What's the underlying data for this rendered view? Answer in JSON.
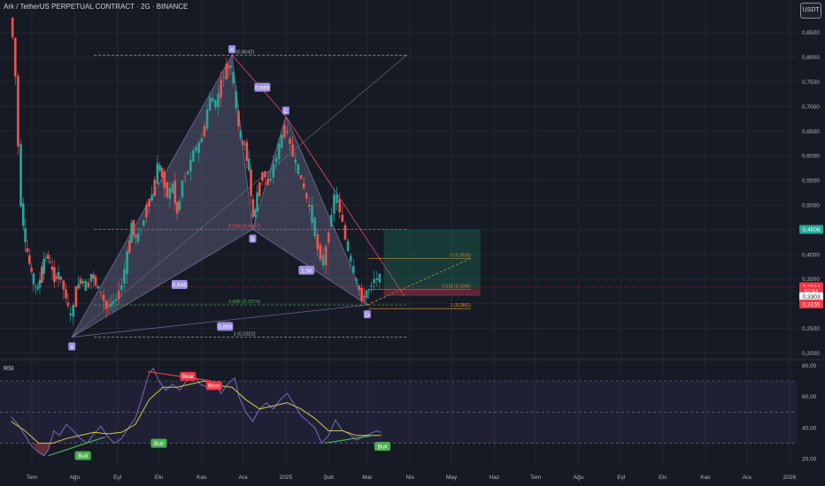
{
  "header": {
    "title": "Ark / TetherUS PERPETUAL CONTRACT · 2G · BINANCE",
    "currency": "USDT"
  },
  "colors": {
    "bg": "#161a25",
    "up": "#26a69a",
    "down": "#ef5350",
    "pattern": "#b8b3e9",
    "label": "#9c8fe0",
    "rsi": "#7e74c9",
    "rsi_ma": "#d6c94a",
    "green": "#4caf50",
    "red": "#f23645"
  },
  "chart_data": [
    {
      "type": "candlestick",
      "price_ticks": [
        "0,8500",
        "0,8000",
        "0,7500",
        "0,7000",
        "0,6500",
        "0,6000",
        "0,5500",
        "0,5000",
        "0,4500",
        "0,4000",
        "0,3500",
        "0,3000",
        "0,2500",
        "0,2000"
      ],
      "price_tick_values": [
        0.85,
        0.8,
        0.75,
        0.7,
        0.65,
        0.6,
        0.55,
        0.5,
        0.45,
        0.4,
        0.35,
        0.3,
        0.25,
        0.2
      ],
      "ylim": [
        0.19,
        0.88
      ],
      "x_ticks": [
        "Tem",
        "Ağu",
        "Eyl",
        "Eki",
        "Kas",
        "Ara",
        "2025",
        "Şub",
        "Mar",
        "Nis",
        "May",
        "Haz",
        "Tem",
        "Ağu",
        "Eyl",
        "Eki",
        "Kas",
        "Ara",
        "2026"
      ],
      "x_tick_days": [
        0,
        31,
        62,
        92,
        123,
        153,
        184,
        215,
        243,
        274,
        304,
        335,
        365,
        396,
        427,
        457,
        488,
        518,
        549
      ],
      "series": [
        {
          "name": "early",
          "points": [
            [
              -15,
              0.88
            ],
            [
              -13,
              0.84
            ],
            [
              -11,
              0.76
            ],
            [
              -9,
              0.62
            ],
            [
              -7,
              0.5
            ],
            [
              -4,
              0.42
            ],
            [
              -1,
              0.38
            ],
            [
              2,
              0.34
            ],
            [
              5,
              0.33
            ],
            [
              8,
              0.37
            ],
            [
              11,
              0.4
            ],
            [
              14,
              0.38
            ],
            [
              17,
              0.35
            ],
            [
              20,
              0.36
            ],
            [
              24,
              0.33
            ],
            [
              27,
              0.29
            ],
            [
              29,
              0.27
            ]
          ]
        },
        {
          "name": "xa",
          "points": [
            [
              29,
              0.27
            ],
            [
              33,
              0.33
            ],
            [
              36,
              0.35
            ],
            [
              40,
              0.33
            ],
            [
              44,
              0.36
            ],
            [
              47,
              0.34
            ],
            [
              51,
              0.32
            ],
            [
              55,
              0.29
            ],
            [
              58,
              0.3
            ],
            [
              62,
              0.31
            ],
            [
              66,
              0.34
            ],
            [
              70,
              0.4
            ],
            [
              73,
              0.46
            ],
            [
              76,
              0.43
            ],
            [
              80,
              0.45
            ],
            [
              84,
              0.5
            ],
            [
              88,
              0.52
            ],
            [
              92,
              0.58
            ],
            [
              95,
              0.56
            ],
            [
              99,
              0.52
            ],
            [
              103,
              0.54
            ],
            [
              106,
              0.48
            ],
            [
              110,
              0.55
            ],
            [
              114,
              0.57
            ],
            [
              118,
              0.61
            ],
            [
              122,
              0.62
            ],
            [
              126,
              0.66
            ],
            [
              130,
              0.72
            ],
            [
              134,
              0.7
            ],
            [
              138,
              0.75
            ],
            [
              142,
              0.78
            ],
            [
              145,
              0.78
            ]
          ]
        },
        {
          "name": "ab",
          "points": [
            [
              145,
              0.78
            ],
            [
              147,
              0.74
            ],
            [
              149,
              0.69
            ],
            [
              152,
              0.63
            ],
            [
              155,
              0.62
            ],
            [
              158,
              0.57
            ],
            [
              161,
              0.47
            ]
          ]
        },
        {
          "name": "bc",
          "points": [
            [
              161,
              0.47
            ],
            [
              164,
              0.52
            ],
            [
              168,
              0.57
            ],
            [
              172,
              0.54
            ],
            [
              176,
              0.58
            ],
            [
              180,
              0.62
            ],
            [
              184,
              0.66
            ]
          ]
        },
        {
          "name": "cd",
          "points": [
            [
              184,
              0.66
            ],
            [
              188,
              0.62
            ],
            [
              192,
              0.58
            ],
            [
              196,
              0.55
            ],
            [
              200,
              0.51
            ],
            [
              204,
              0.47
            ],
            [
              208,
              0.41
            ],
            [
              212,
              0.38
            ],
            [
              216,
              0.45
            ],
            [
              220,
              0.52
            ],
            [
              224,
              0.49
            ],
            [
              228,
              0.43
            ],
            [
              232,
              0.38
            ],
            [
              236,
              0.34
            ],
            [
              240,
              0.31
            ],
            [
              245,
              0.33
            ],
            [
              249,
              0.35
            ],
            [
              253,
              0.35
            ]
          ]
        }
      ],
      "pattern": {
        "points": [
          {
            "label": "X",
            "day": 29,
            "price": 0.2322
          },
          {
            "label": "A",
            "day": 145,
            "price": 0.8042
          },
          {
            "label": "B",
            "day": 160,
            "price": 0.4507
          },
          {
            "label": "C",
            "day": 184,
            "price": 0.68
          },
          {
            "label": "D",
            "day": 243,
            "price": 0.2974
          }
        ],
        "ratios": [
          {
            "text": "0,645",
            "day": 107,
            "price": 0.337
          },
          {
            "text": "0,669",
            "day": 167,
            "price": 0.737
          },
          {
            "text": "1,56",
            "day": 199,
            "price": 0.366
          },
          {
            "text": "0,899",
            "day": 140,
            "price": 0.252
          }
        ],
        "levels": [
          {
            "text": "0 (0,8042)",
            "day0": 45,
            "day1": 272,
            "price": 0.8042,
            "label_day": 153,
            "color": "#b2b5be"
          },
          {
            "text": "0,618 (0,4507)",
            "day0": 45,
            "day1": 272,
            "price": 0.4507,
            "label_day": 154,
            "color": "#ef5350"
          },
          {
            "text": "0,886 (0,2974)",
            "day0": 45,
            "day1": 272,
            "price": 0.2974,
            "label_day": 154,
            "color": "#4caf50"
          },
          {
            "text": "1 (0,2322)",
            "day0": 45,
            "day1": 272,
            "price": 0.2322,
            "label_day": 154,
            "color": "#b2b5be"
          }
        ],
        "target_levels": [
          {
            "text": "0 (0,3916)",
            "day0": 244,
            "day1": 318,
            "price": 0.3916,
            "color": "#f0a030"
          },
          {
            "text": "0,618 (0,3289)",
            "day0": 244,
            "day1": 318,
            "price": 0.3289,
            "color": "#f0a030"
          },
          {
            "text": "1 (0,2901)",
            "day0": 244,
            "day1": 318,
            "price": 0.2901,
            "color": "#f0a030"
          }
        ],
        "position": {
          "day0": 255,
          "day1": 325,
          "entry": 0.3303,
          "target": 0.4506,
          "stop": 0.3155
        }
      },
      "price_labels": [
        {
          "text": "0,4506",
          "price": 0.4506,
          "bg": "#26a69a",
          "fg": "#ffffff"
        },
        {
          "text": "0,3344",
          "price": 0.3344,
          "bg": "#f23645",
          "fg": "#ffffff"
        },
        {
          "text": "37:51",
          "price": 0.3253,
          "bg": "#f23645",
          "fg": "#ffffff"
        },
        {
          "text": "0,3303",
          "price": 0.3303,
          "bg": "#ffffff",
          "fg": "#131722",
          "offset": 1
        },
        {
          "text": "0,3155",
          "price": 0.3155,
          "bg": "#f23645",
          "fg": "#ffffff",
          "offset": 1
        }
      ]
    },
    {
      "type": "line",
      "title": "RSI",
      "y_ticks": [
        "80,00",
        "60,00",
        "40,00",
        "20,00"
      ],
      "y_tick_values": [
        80,
        60,
        40,
        20
      ],
      "ylim": [
        15,
        82
      ],
      "bands": [
        70,
        50,
        30
      ],
      "series": [
        {
          "name": "RSI",
          "points": [
            [
              -15,
              47
            ],
            [
              -10,
              42
            ],
            [
              -5,
              35
            ],
            [
              0,
              28
            ],
            [
              5,
              24
            ],
            [
              9,
              22
            ],
            [
              12,
              26
            ],
            [
              16,
              38
            ],
            [
              20,
              35
            ],
            [
              25,
              42
            ],
            [
              30,
              38
            ],
            [
              35,
              33
            ],
            [
              40,
              30
            ],
            [
              45,
              36
            ],
            [
              50,
              41
            ],
            [
              55,
              34
            ],
            [
              60,
              30
            ],
            [
              65,
              33
            ],
            [
              70,
              40
            ],
            [
              75,
              46
            ],
            [
              80,
              60
            ],
            [
              85,
              75
            ],
            [
              88,
              78
            ],
            [
              92,
              70
            ],
            [
              97,
              64
            ],
            [
              102,
              68
            ],
            [
              107,
              64
            ],
            [
              112,
              70
            ],
            [
              117,
              74
            ],
            [
              122,
              68
            ],
            [
              127,
              66
            ],
            [
              132,
              70
            ],
            [
              137,
              62
            ],
            [
              142,
              68
            ],
            [
              147,
              72
            ],
            [
              150,
              60
            ],
            [
              155,
              50
            ],
            [
              160,
              44
            ],
            [
              165,
              52
            ],
            [
              170,
              56
            ],
            [
              175,
              52
            ],
            [
              180,
              58
            ],
            [
              185,
              62
            ],
            [
              190,
              55
            ],
            [
              195,
              48
            ],
            [
              200,
              44
            ],
            [
              205,
              40
            ],
            [
              210,
              30
            ],
            [
              215,
              35
            ],
            [
              220,
              45
            ],
            [
              225,
              38
            ],
            [
              230,
              36
            ],
            [
              235,
              32
            ],
            [
              240,
              34
            ],
            [
              245,
              36
            ],
            [
              250,
              38
            ],
            [
              253,
              37
            ]
          ]
        },
        {
          "name": "RSI MA",
          "points": [
            [
              -15,
              44
            ],
            [
              -5,
              38
            ],
            [
              5,
              30
            ],
            [
              15,
              30
            ],
            [
              25,
              33
            ],
            [
              35,
              35
            ],
            [
              45,
              37
            ],
            [
              55,
              36
            ],
            [
              65,
              37
            ],
            [
              75,
              42
            ],
            [
              85,
              58
            ],
            [
              95,
              66
            ],
            [
              105,
              66
            ],
            [
              115,
              68
            ],
            [
              125,
              70
            ],
            [
              135,
              67
            ],
            [
              145,
              66
            ],
            [
              155,
              58
            ],
            [
              165,
              52
            ],
            [
              175,
              54
            ],
            [
              185,
              56
            ],
            [
              195,
              52
            ],
            [
              205,
              46
            ],
            [
              215,
              38
            ],
            [
              225,
              38
            ],
            [
              235,
              35
            ],
            [
              245,
              35
            ],
            [
              253,
              35
            ]
          ]
        }
      ],
      "divergences": [
        {
          "text": "Bear",
          "type": "bear",
          "from": [
            84,
            76
          ],
          "to": [
            130,
            70
          ],
          "labels": [
            {
              "day": 113,
              "value": 73
            },
            {
              "day": 132,
              "value": 67
            }
          ]
        },
        {
          "text": "Bull",
          "type": "bull",
          "from": [
            12,
            22
          ],
          "to": [
            53,
            34
          ],
          "labels": [
            {
              "day": 37,
              "value": 22
            },
            {
              "day": 92,
              "value": 30
            }
          ]
        },
        {
          "text": "Bull",
          "type": "bull",
          "from": [
            212,
            30
          ],
          "to": [
            247,
            35
          ],
          "labels": [
            {
              "day": 254,
              "value": 28
            }
          ]
        }
      ]
    }
  ]
}
